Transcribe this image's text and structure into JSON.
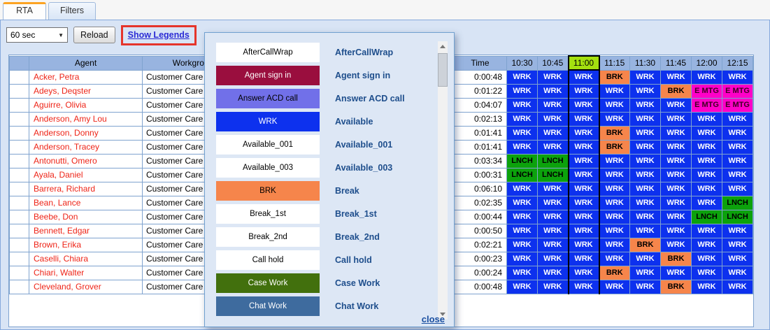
{
  "tabs": [
    {
      "label": "RTA",
      "active": true
    },
    {
      "label": "Filters",
      "active": false
    }
  ],
  "toolbar": {
    "refresh_select_value": "60 sec",
    "reload_label": "Reload",
    "show_legends_label": "Show Legends",
    "annotation_color": "#e5352b"
  },
  "table": {
    "headers": {
      "agent": "Agent",
      "workgroup": "Workgroup",
      "time": "Time"
    },
    "time_columns": [
      "10:30",
      "10:45",
      "11:00",
      "11:15",
      "11:30",
      "11:45",
      "12:00",
      "12:15"
    ],
    "current_time_column": "11:00",
    "current_column_color": "#a4e00f",
    "rows": [
      {
        "agent": "Acker, Petra",
        "workgroup": "Customer Care 5",
        "time": "0:00:48",
        "states": [
          "WRK",
          "WRK",
          "WRK",
          "BRK",
          "WRK",
          "WRK",
          "WRK",
          "WRK"
        ]
      },
      {
        "agent": "Adeys, Deqster",
        "workgroup": "Customer Care 5",
        "time": "0:01:22",
        "states": [
          "WRK",
          "WRK",
          "WRK",
          "WRK",
          "WRK",
          "BRK",
          "E MTG",
          "E MTG"
        ]
      },
      {
        "agent": "Aguirre, Olivia",
        "workgroup": "Customer Care 5",
        "time": "0:04:07",
        "states": [
          "WRK",
          "WRK",
          "WRK",
          "WRK",
          "WRK",
          "WRK",
          "E MTG",
          "E MTG"
        ]
      },
      {
        "agent": "Anderson, Amy Lou",
        "workgroup": "Customer Care 5",
        "time": "0:02:13",
        "states": [
          "WRK",
          "WRK",
          "WRK",
          "WRK",
          "WRK",
          "WRK",
          "WRK",
          "WRK"
        ]
      },
      {
        "agent": "Anderson, Donny",
        "workgroup": "Customer Care 5",
        "time": "0:01:41",
        "states": [
          "WRK",
          "WRK",
          "WRK",
          "BRK",
          "WRK",
          "WRK",
          "WRK",
          "WRK"
        ]
      },
      {
        "agent": "Anderson, Tracey",
        "workgroup": "Customer Care 5",
        "time": "0:01:41",
        "states": [
          "WRK",
          "WRK",
          "WRK",
          "BRK",
          "WRK",
          "WRK",
          "WRK",
          "WRK"
        ]
      },
      {
        "agent": "Antonutti, Omero",
        "workgroup": "Customer Care 5",
        "time": "0:03:34",
        "states": [
          "LNCH",
          "LNCH",
          "WRK",
          "WRK",
          "WRK",
          "WRK",
          "WRK",
          "WRK"
        ]
      },
      {
        "agent": "Ayala, Daniel",
        "workgroup": "Customer Care 5",
        "time": "0:00:31",
        "states": [
          "LNCH",
          "LNCH",
          "WRK",
          "WRK",
          "WRK",
          "WRK",
          "WRK",
          "WRK"
        ]
      },
      {
        "agent": "Barrera, Richard",
        "workgroup": "Customer Care 5",
        "time": "0:06:10",
        "states": [
          "WRK",
          "WRK",
          "WRK",
          "WRK",
          "WRK",
          "WRK",
          "WRK",
          "WRK"
        ]
      },
      {
        "agent": "Bean, Lance",
        "workgroup": "Customer Care 5",
        "time": "0:02:35",
        "states": [
          "WRK",
          "WRK",
          "WRK",
          "WRK",
          "WRK",
          "WRK",
          "WRK",
          "LNCH"
        ]
      },
      {
        "agent": "Beebe, Don",
        "workgroup": "Customer Care 5",
        "time": "0:00:44",
        "states": [
          "WRK",
          "WRK",
          "WRK",
          "WRK",
          "WRK",
          "WRK",
          "LNCH",
          "LNCH"
        ]
      },
      {
        "agent": "Bennett, Edgar",
        "workgroup": "Customer Care 5",
        "time": "0:00:50",
        "states": [
          "WRK",
          "WRK",
          "WRK",
          "WRK",
          "WRK",
          "WRK",
          "WRK",
          "WRK"
        ]
      },
      {
        "agent": "Brown, Erika",
        "workgroup": "Customer Care 5",
        "time": "0:02:21",
        "states": [
          "WRK",
          "WRK",
          "WRK",
          "WRK",
          "BRK",
          "WRK",
          "WRK",
          "WRK"
        ]
      },
      {
        "agent": "Caselli, Chiara",
        "workgroup": "Customer Care 5",
        "time": "0:00:23",
        "states": [
          "WRK",
          "WRK",
          "WRK",
          "WRK",
          "WRK",
          "BRK",
          "WRK",
          "WRK"
        ]
      },
      {
        "agent": "Chiari, Walter",
        "workgroup": "Customer Care 5",
        "time": "0:00:24",
        "states": [
          "WRK",
          "WRK",
          "WRK",
          "BRK",
          "WRK",
          "WRK",
          "WRK",
          "WRK"
        ]
      },
      {
        "agent": "Cleveland, Grover",
        "workgroup": "Customer Care 5",
        "time": "0:00:48",
        "states": [
          "WRK",
          "WRK",
          "WRK",
          "WRK",
          "WRK",
          "BRK",
          "WRK",
          "WRK"
        ]
      }
    ]
  },
  "states": {
    "WRK": {
      "bg": "#0d31ee",
      "fg": "#ffffff"
    },
    "BRK": {
      "bg": "#f6854b",
      "fg": "#000000"
    },
    "LNCH": {
      "bg": "#0ca20c",
      "fg": "#000000"
    },
    "E MTG": {
      "bg": "#ff00c8",
      "fg": "#3d0022"
    }
  },
  "legend_popup": {
    "items": [
      {
        "state": "AfterCallWrap",
        "label": "AfterCallWrap",
        "bg": "#ffffff",
        "fg": "#000000"
      },
      {
        "state": "Agent sign in",
        "label": "Agent sign in",
        "bg": "#9a0e3e",
        "fg": "#ffffff"
      },
      {
        "state": "Answer ACD call",
        "label": "Answer ACD call",
        "bg": "#7170e9",
        "fg": "#000000"
      },
      {
        "state": "WRK",
        "label": "Available",
        "bg": "#0d31ee",
        "fg": "#ffffff"
      },
      {
        "state": "Available_001",
        "label": "Available_001",
        "bg": "#ffffff",
        "fg": "#000000"
      },
      {
        "state": "Available_003",
        "label": "Available_003",
        "bg": "#ffffff",
        "fg": "#000000"
      },
      {
        "state": "BRK",
        "label": "Break",
        "bg": "#f6854b",
        "fg": "#000000"
      },
      {
        "state": "Break_1st",
        "label": "Break_1st",
        "bg": "#ffffff",
        "fg": "#000000"
      },
      {
        "state": "Break_2nd",
        "label": "Break_2nd",
        "bg": "#ffffff",
        "fg": "#000000"
      },
      {
        "state": "Call hold",
        "label": "Call hold",
        "bg": "#ffffff",
        "fg": "#000000"
      },
      {
        "state": "Case Work",
        "label": "Case Work",
        "bg": "#42700d",
        "fg": "#ffffff"
      },
      {
        "state": "Chat Work",
        "label": "Chat Work",
        "bg": "#3e6b9e",
        "fg": "#ffffff"
      }
    ],
    "close_label": "close"
  }
}
